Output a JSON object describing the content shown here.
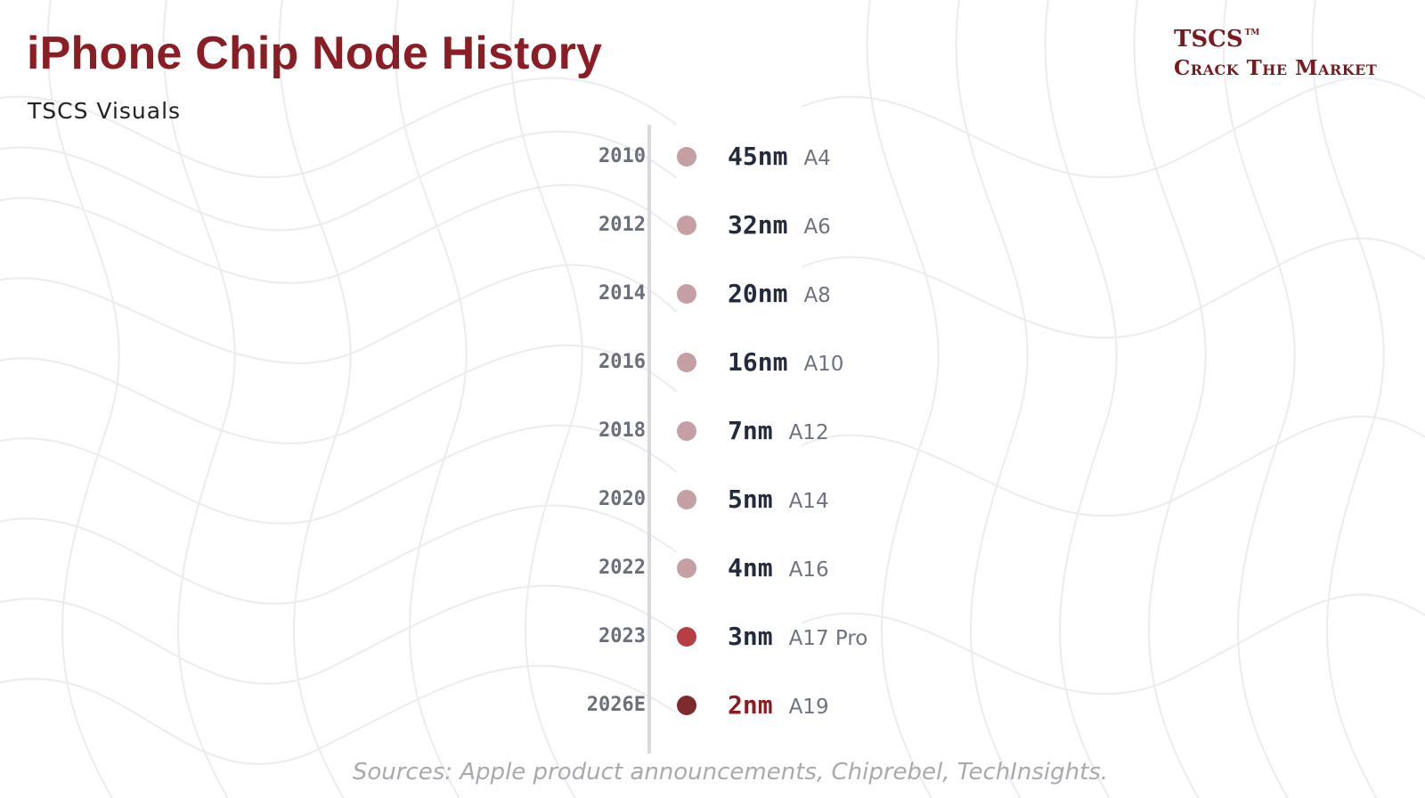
{
  "header": {
    "title": "iPhone Chip Node History",
    "subtitle": "TSCS Visuals"
  },
  "brand": {
    "name": "TSCS",
    "trademark": "TM",
    "tagline": "Crack The Market"
  },
  "colors": {
    "title": "#8b1e24",
    "past_dot": "#c4a0a4",
    "recent_dot": "#b53f44",
    "future_dot": "#7f2a2d",
    "node_text": "#232b3d",
    "future_node_text": "#8b1e24"
  },
  "chart_data": {
    "type": "timeline",
    "title": "iPhone Chip Node History",
    "series": [
      {
        "year": "2010",
        "node": "45nm",
        "node_nm": 45,
        "chip": "A4",
        "status": "past"
      },
      {
        "year": "2012",
        "node": "32nm",
        "node_nm": 32,
        "chip": "A6",
        "status": "past"
      },
      {
        "year": "2014",
        "node": "20nm",
        "node_nm": 20,
        "chip": "A8",
        "status": "past"
      },
      {
        "year": "2016",
        "node": "16nm",
        "node_nm": 16,
        "chip": "A10",
        "status": "past"
      },
      {
        "year": "2018",
        "node": "7nm",
        "node_nm": 7,
        "chip": "A12",
        "status": "past"
      },
      {
        "year": "2020",
        "node": "5nm",
        "node_nm": 5,
        "chip": "A14",
        "status": "past"
      },
      {
        "year": "2022",
        "node": "4nm",
        "node_nm": 4,
        "chip": "A16",
        "status": "past"
      },
      {
        "year": "2023",
        "node": "3nm",
        "node_nm": 3,
        "chip": "A17 Pro",
        "status": "recent"
      },
      {
        "year": "2026E",
        "node": "2nm",
        "node_nm": 2,
        "chip": "A19",
        "status": "future"
      }
    ]
  },
  "footer": {
    "sources": "Sources: Apple product announcements, Chiprebel, TechInsights."
  }
}
